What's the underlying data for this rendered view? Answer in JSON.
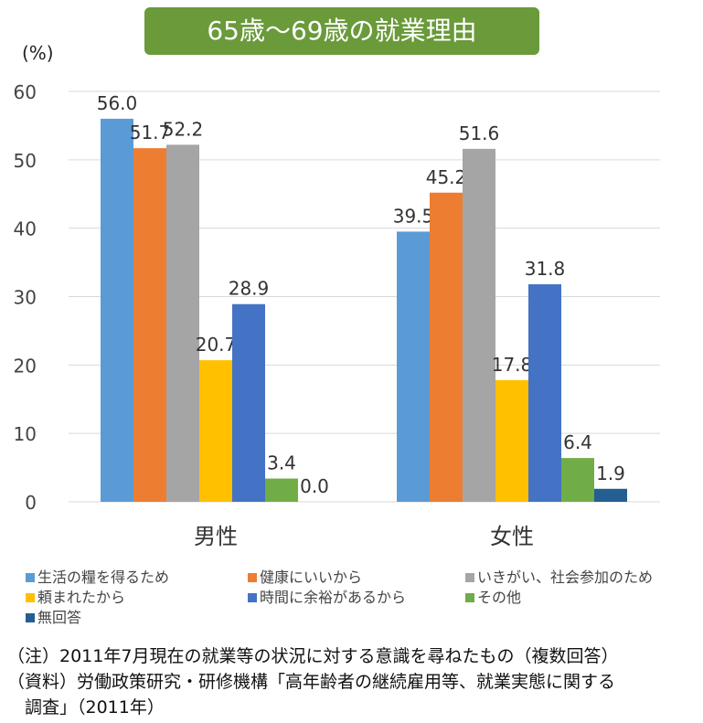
{
  "chart_data": {
    "type": "bar",
    "title": "65歳〜69歳の就業理由",
    "ylabel": "(%)",
    "ylim": [
      0,
      60
    ],
    "yticks": [
      0,
      10,
      20,
      30,
      40,
      50,
      60
    ],
    "grid": true,
    "legend_position": "bottom",
    "categories": [
      "男性",
      "女性"
    ],
    "series": [
      {
        "name": "生活の糧を得るため",
        "color": "#5b9bd5",
        "values": [
          56.0,
          39.5
        ]
      },
      {
        "name": "健康にいいから",
        "color": "#ed7d31",
        "values": [
          51.7,
          45.2
        ]
      },
      {
        "name": "いきがい、社会参加のため",
        "color": "#a5a5a5",
        "values": [
          52.2,
          51.6
        ]
      },
      {
        "name": "頼まれたから",
        "color": "#ffc000",
        "values": [
          20.7,
          17.8
        ]
      },
      {
        "name": "時間に余裕があるから",
        "color": "#4472c4",
        "values": [
          28.9,
          31.8
        ]
      },
      {
        "name": "その他",
        "color": "#70ad47",
        "values": [
          3.4,
          6.4
        ]
      },
      {
        "name": "無回答",
        "color": "#255e91",
        "values": [
          0.0,
          1.9
        ]
      }
    ]
  },
  "notes": [
    "（注）2011年7月現在の就業等の状況に対する意識を尋ねたもの（複数回答）",
    "（資料）労働政策研究・研修機構「高年齢者の継続雇用等、就業実態に関する",
    "　調査」（2011年）"
  ]
}
